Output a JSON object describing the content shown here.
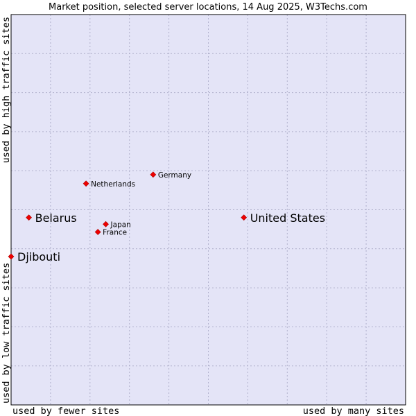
{
  "chart_data": {
    "type": "scatter",
    "title": "Market position, selected server locations, 14 Aug 2025, W3Techs.com",
    "xlabel_left": "used by fewer sites",
    "xlabel_right": "used by many sites",
    "ylabel_top": "used by high traffic sites",
    "ylabel_bottom": "used by low traffic sites",
    "xlim": [
      0,
      10
    ],
    "ylim": [
      0,
      10
    ],
    "grid": true,
    "colors": {
      "plot_bg": "#e4e4f7",
      "grid": "#b0b0cc",
      "border": "#000000",
      "marker": "#ee0000"
    },
    "points": [
      {
        "name": "United States",
        "x": 5.9,
        "y": 4.8,
        "emphasis": "large"
      },
      {
        "name": "Germany",
        "x": 3.6,
        "y": 5.9,
        "emphasis": "small"
      },
      {
        "name": "Netherlands",
        "x": 1.9,
        "y": 5.67,
        "emphasis": "small"
      },
      {
        "name": "Belarus",
        "x": 0.45,
        "y": 4.8,
        "emphasis": "large"
      },
      {
        "name": "Japan",
        "x": 2.4,
        "y": 4.63,
        "emphasis": "small"
      },
      {
        "name": "France",
        "x": 2.2,
        "y": 4.43,
        "emphasis": "small"
      },
      {
        "name": "Djibouti",
        "x": 0.0,
        "y": 3.8,
        "emphasis": "large"
      }
    ]
  }
}
